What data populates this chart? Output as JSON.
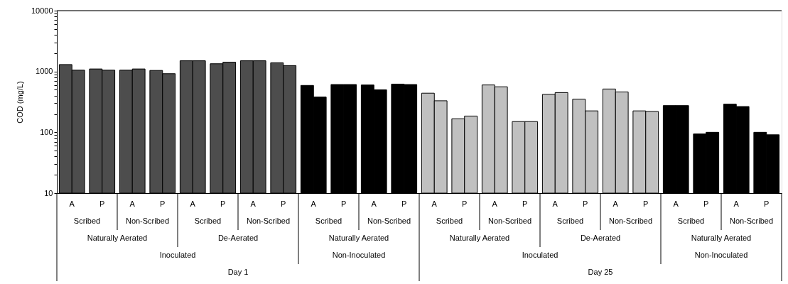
{
  "chart_data": {
    "type": "bar",
    "ylabel": "COD (mg/L)",
    "log": "y",
    "grid": false,
    "categories": [
      "A",
      "P",
      "A",
      "P",
      "A",
      "P",
      "A",
      "P",
      "A",
      "P",
      "A",
      "P",
      "A",
      "P",
      "A",
      "P",
      "A",
      "P",
      "A",
      "P",
      "A",
      "P",
      "A",
      "P"
    ],
    "series": [
      {
        "values": [
          1300,
          1100,
          1050,
          1040,
          1500,
          1340,
          1500,
          1390,
          590,
          610,
          600,
          620,
          440,
          167,
          600,
          150,
          420,
          350,
          515,
          225,
          275,
          94,
          290,
          100
        ],
        "colors": [
          "#4d4d4d",
          "#4d4d4d",
          "#4d4d4d",
          "#4d4d4d",
          "#4d4d4d",
          "#4d4d4d",
          "#4d4d4d",
          "#4d4d4d",
          "#000000",
          "#000000",
          "#000000",
          "#000000",
          "#c0c0c0",
          "#c0c0c0",
          "#c0c0c0",
          "#c0c0c0",
          "#c0c0c0",
          "#c0c0c0",
          "#c0c0c0",
          "#c0c0c0",
          "#000000",
          "#000000",
          "#000000",
          "#000000"
        ]
      },
      {
        "values": [
          1050,
          1050,
          1100,
          920,
          1500,
          1420,
          1500,
          1250,
          380,
          610,
          500,
          610,
          330,
          185,
          560,
          150,
          450,
          225,
          460,
          220,
          275,
          100,
          265,
          91
        ],
        "colors": [
          "#4d4d4d",
          "#4d4d4d",
          "#4d4d4d",
          "#4d4d4d",
          "#4d4d4d",
          "#4d4d4d",
          "#4d4d4d",
          "#4d4d4d",
          "#000000",
          "#000000",
          "#000000",
          "#000000",
          "#c0c0c0",
          "#c0c0c0",
          "#c0c0c0",
          "#c0c0c0",
          "#c0c0c0",
          "#c0c0c0",
          "#c0c0c0",
          "#c0c0c0",
          "#000000",
          "#000000",
          "#000000",
          "#000000"
        ]
      }
    ],
    "ylim": [
      10,
      10000
    ],
    "yticks": [
      10,
      {
        "value": 20,
        "label": null
      },
      {
        "value": 30,
        "label": null
      },
      {
        "value": 40,
        "label": null
      },
      {
        "value": 50,
        "label": null
      },
      {
        "value": 60,
        "label": null
      },
      {
        "value": 70,
        "label": null
      },
      {
        "value": 80,
        "label": null
      },
      {
        "value": 90,
        "label": null
      },
      100,
      {
        "value": 200,
        "label": null
      },
      {
        "value": 300,
        "label": null
      },
      {
        "value": 400,
        "label": null
      },
      {
        "value": 500,
        "label": null
      },
      {
        "value": 600,
        "label": null
      },
      {
        "value": 700,
        "label": null
      },
      {
        "value": 800,
        "label": null
      },
      {
        "value": 900,
        "label": null
      },
      1000,
      {
        "value": 2000,
        "label": null
      },
      {
        "value": 3000,
        "label": null
      },
      {
        "value": 4000,
        "label": null
      },
      {
        "value": 5000,
        "label": null
      },
      {
        "value": 6000,
        "label": null
      },
      {
        "value": 7000,
        "label": null
      },
      {
        "value": 8000,
        "label": null
      },
      {
        "value": 9000,
        "label": null
      },
      10000
    ],
    "annotations": [
      "Scribed",
      "Non-Scribed",
      "Scribed",
      "Non-Scribed",
      "Scribed",
      "Non-Scribed",
      "Scribed",
      "Non-Scribed",
      "Scribed",
      "Non-Scribed",
      "Scribed",
      "Non-Scribed",
      "Naturally Aerated",
      "De-Aerated",
      "Naturally Aerated",
      "Naturally Aerated",
      "De-Aerated",
      "Naturally Aerated",
      "Inoculated",
      "Non-Inoculated",
      "Inoculated",
      "Non-Inoculated",
      "Day 1",
      "Day 25"
    ]
  }
}
